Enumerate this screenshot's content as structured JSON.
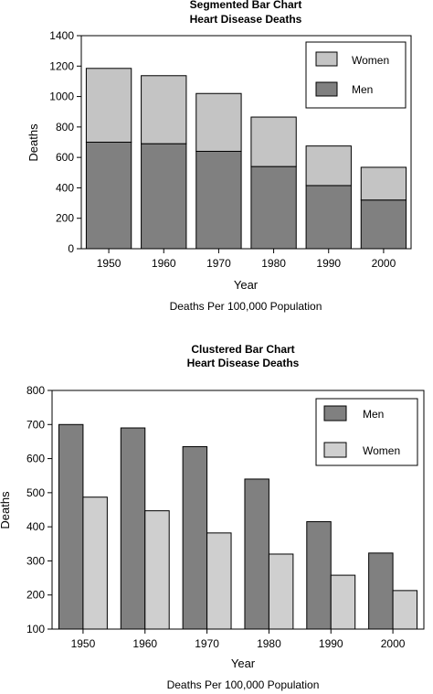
{
  "chart_data": [
    {
      "type": "bar",
      "stacked": true,
      "title": "Segmented Bar Chart",
      "subtitle": "Heart Disease Deaths",
      "xlabel": "Year",
      "ylabel": "Deaths",
      "caption": "Deaths Per 100,000 Population",
      "categories": [
        "1950",
        "1960",
        "1970",
        "1980",
        "1990",
        "2000"
      ],
      "series": [
        {
          "name": "Men",
          "values": [
            700,
            690,
            640,
            540,
            415,
            320
          ],
          "color": "#808080"
        },
        {
          "name": "Women",
          "values": [
            485,
            447,
            380,
            325,
            260,
            215
          ],
          "color": "#c4c4c4"
        }
      ],
      "ylim": [
        0,
        1400
      ],
      "yticks": [
        "0",
        "200",
        "400",
        "600",
        "800",
        "1000",
        "1200",
        "1400"
      ],
      "legend": "top-right",
      "legend_order": [
        "Women",
        "Men"
      ],
      "grid": false
    },
    {
      "type": "bar",
      "stacked": false,
      "title": "Clustered Bar Chart",
      "subtitle": "Heart Disease Deaths",
      "xlabel": "Year",
      "ylabel": "Deaths",
      "caption": "Deaths Per 100,000 Population",
      "categories": [
        "1950",
        "1960",
        "1970",
        "1980",
        "1990",
        "2000"
      ],
      "series": [
        {
          "name": "Men",
          "values": [
            700,
            690,
            635,
            540,
            415,
            323
          ],
          "color": "#808080"
        },
        {
          "name": "Women",
          "values": [
            487,
            447,
            382,
            320,
            258,
            213
          ],
          "color": "#cfcfcf"
        }
      ],
      "ylim": [
        100,
        800
      ],
      "yticks": [
        "100",
        "200",
        "300",
        "400",
        "500",
        "600",
        "700",
        "800"
      ],
      "legend": "top-right",
      "legend_order": [
        "Men",
        "Women"
      ],
      "grid": false
    }
  ]
}
